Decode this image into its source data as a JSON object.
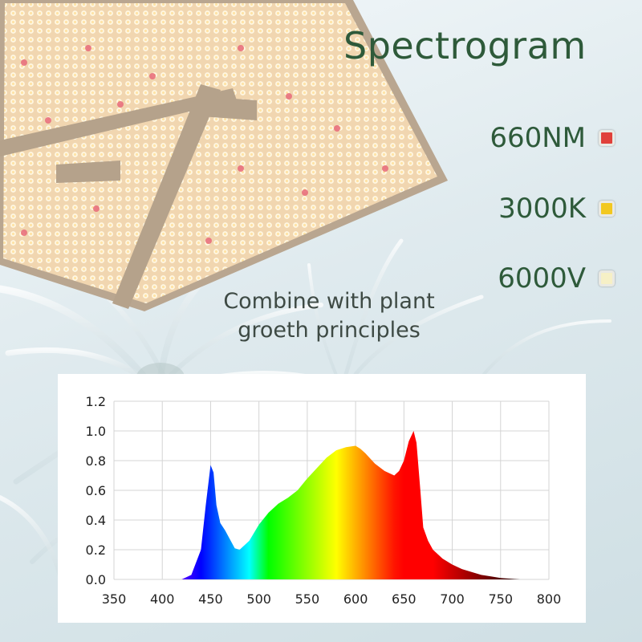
{
  "title": "Spectrogram",
  "subtitle": [
    "Combine with plant",
    "groeth principles"
  ],
  "legend": [
    {
      "label": "660NM",
      "color": "#e0403a"
    },
    {
      "label": "3000K",
      "color": "#f2c820"
    },
    {
      "label": "6000V",
      "color": "#f6f0c6"
    }
  ],
  "chart_data": {
    "type": "area",
    "title": "",
    "xlabel": "",
    "ylabel": "",
    "xlim": [
      350,
      800
    ],
    "ylim": [
      0,
      1.2
    ],
    "x_ticks": [
      "350",
      "400",
      "450",
      "500",
      "550",
      "600",
      "650",
      "700",
      "750",
      "800"
    ],
    "y_ticks": [
      "0.0",
      "0.2",
      "0.4",
      "0.6",
      "0.8",
      "1.0",
      "1.2"
    ],
    "grid": true,
    "series": [
      {
        "x": [
          410,
          420,
          430,
          440,
          445,
          450,
          453,
          456,
          460,
          465,
          470,
          475,
          480,
          490,
          500,
          510,
          520,
          530,
          540,
          550,
          560,
          570,
          580,
          590,
          600,
          605,
          610,
          620,
          630,
          640,
          645,
          650,
          655,
          660,
          663,
          667,
          670,
          675,
          680,
          690,
          700,
          710,
          720,
          730,
          740,
          750,
          760,
          770
        ],
        "y": [
          0.0,
          0.0,
          0.03,
          0.2,
          0.5,
          0.77,
          0.72,
          0.5,
          0.38,
          0.33,
          0.27,
          0.21,
          0.2,
          0.26,
          0.37,
          0.45,
          0.51,
          0.55,
          0.6,
          0.68,
          0.75,
          0.82,
          0.87,
          0.89,
          0.9,
          0.88,
          0.85,
          0.78,
          0.73,
          0.7,
          0.73,
          0.8,
          0.93,
          1.0,
          0.92,
          0.6,
          0.35,
          0.26,
          0.2,
          0.14,
          0.1,
          0.07,
          0.05,
          0.03,
          0.02,
          0.01,
          0.005,
          0.0
        ]
      }
    ]
  }
}
